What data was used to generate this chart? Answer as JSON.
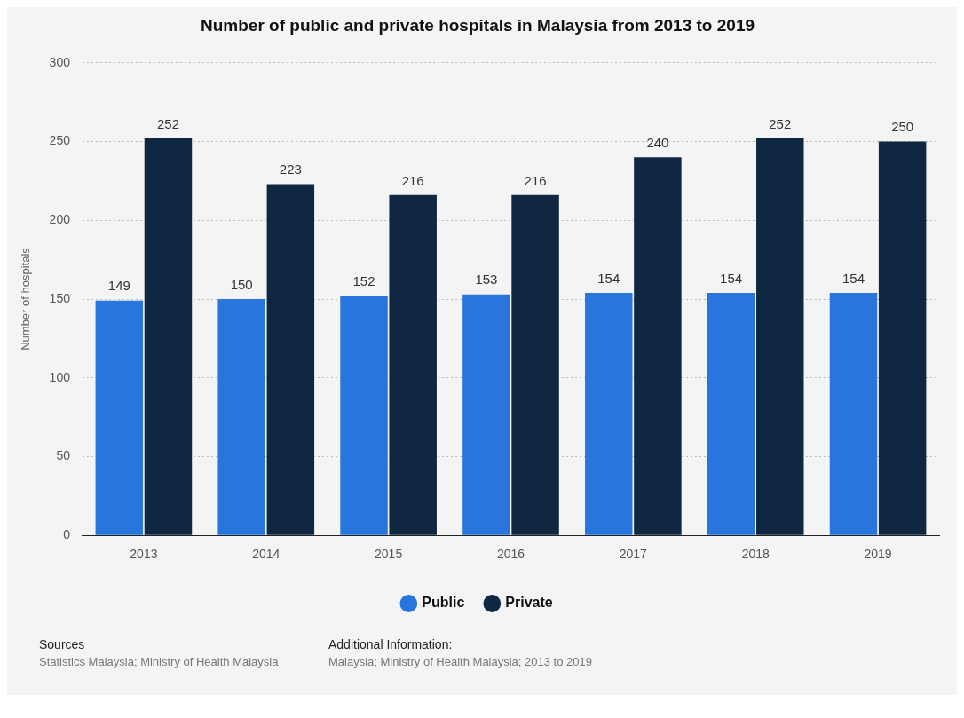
{
  "chart_data": {
    "type": "bar",
    "title": "Number of public and private hospitals in Malaysia from 2013 to 2019",
    "ylabel": "Number of hospitals",
    "categories": [
      "2013",
      "2014",
      "2015",
      "2016",
      "2017",
      "2018",
      "2019"
    ],
    "series": [
      {
        "name": "Public",
        "color": "#2876dd",
        "values": [
          149,
          150,
          152,
          153,
          154,
          154,
          154
        ]
      },
      {
        "name": "Private",
        "color": "#0f2741",
        "values": [
          252,
          223,
          216,
          216,
          240,
          252,
          250
        ]
      }
    ],
    "ylim": [
      0,
      300
    ],
    "yticks": [
      0,
      50,
      100,
      150,
      200,
      250,
      300
    ],
    "grid": "y",
    "legend": "bottom",
    "data_labels": true,
    "annotations": [
      "Sources",
      "Statistics Malaysia; Ministry of Health Malaysia",
      "Additional Information:",
      "Malaysia; Ministry of Health Malaysia; 2013 to 2019"
    ]
  }
}
